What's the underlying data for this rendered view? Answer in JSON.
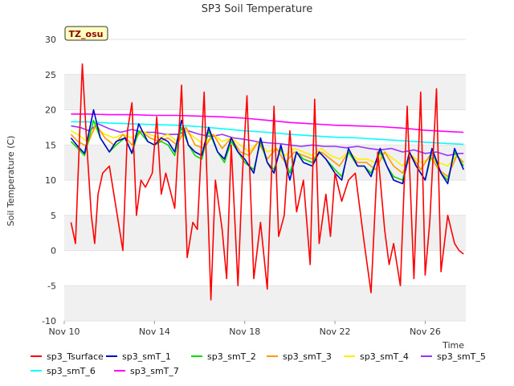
{
  "chart_data": {
    "type": "line",
    "title": "SP3 Soil Temperature",
    "xlabel": "Time",
    "ylabel": "Soil Temperature (C)",
    "site_label": "TZ_osu",
    "x_unit": "day of November",
    "xlim": [
      10,
      27.8
    ],
    "ylim": [
      -10,
      30
    ],
    "x_ticks": [
      {
        "value": 10,
        "label": "Nov 10"
      },
      {
        "value": 14,
        "label": "Nov 14"
      },
      {
        "value": 18,
        "label": "Nov 18"
      },
      {
        "value": 22,
        "label": "Nov 22"
      },
      {
        "value": 26,
        "label": "Nov 26"
      }
    ],
    "y_ticks": [
      -10,
      -5,
      0,
      5,
      10,
      15,
      20,
      25,
      30
    ],
    "grid": "horizontal bands",
    "legend_position": "bottom",
    "series": [
      {
        "name": "sp3_Tsurface",
        "color": "#ff0000",
        "x": [
          10.3,
          10.5,
          10.8,
          11.0,
          11.2,
          11.35,
          11.5,
          11.7,
          12.0,
          12.3,
          12.6,
          12.8,
          13.0,
          13.2,
          13.4,
          13.6,
          13.9,
          14.1,
          14.3,
          14.5,
          14.9,
          15.2,
          15.45,
          15.7,
          15.9,
          16.2,
          16.5,
          16.7,
          17.0,
          17.2,
          17.4,
          17.7,
          17.9,
          18.1,
          18.4,
          18.7,
          19.0,
          19.3,
          19.5,
          19.75,
          20.0,
          20.3,
          20.6,
          20.9,
          21.1,
          21.3,
          21.6,
          21.8,
          22.0,
          22.3,
          22.6,
          22.9,
          23.3,
          23.6,
          23.9,
          24.2,
          24.4,
          24.6,
          24.9,
          25.2,
          25.5,
          25.8,
          26.0,
          26.2,
          26.5,
          26.7,
          27.0,
          27.3,
          27.5,
          27.7
        ],
        "values": [
          4,
          1,
          26.5,
          15,
          5,
          1,
          8,
          11,
          12,
          6,
          0,
          17,
          21,
          5,
          10,
          9,
          11,
          19,
          8,
          11,
          6,
          23.5,
          -1,
          4,
          3,
          22.5,
          -7,
          10,
          3,
          -4,
          15,
          -5,
          11,
          22,
          -4,
          4,
          -5.5,
          20.5,
          2,
          5,
          17,
          5.5,
          10,
          -2,
          21.5,
          1,
          8,
          2,
          11,
          7,
          10,
          11,
          1,
          -6,
          14,
          3,
          -2,
          1,
          -5,
          20.5,
          -4,
          22.5,
          -3.5,
          4,
          23,
          -3,
          5,
          1,
          0,
          -0.5
        ]
      },
      {
        "name": "sp3_smT_1",
        "color": "#0000cc",
        "x": [
          10.3,
          10.6,
          10.9,
          11.3,
          11.6,
          12.0,
          12.3,
          12.7,
          13.0,
          13.3,
          13.7,
          14.0,
          14.3,
          14.6,
          14.9,
          15.2,
          15.5,
          15.8,
          16.1,
          16.4,
          16.8,
          17.1,
          17.4,
          17.7,
          18.0,
          18.4,
          18.7,
          19.0,
          19.3,
          19.6,
          20.0,
          20.3,
          20.6,
          21.0,
          21.3,
          21.6,
          22.0,
          22.3,
          22.6,
          23.0,
          23.3,
          23.6,
          24.0,
          24.3,
          24.6,
          25.0,
          25.3,
          25.6,
          26.0,
          26.3,
          26.7,
          27.0,
          27.3,
          27.5,
          27.7
        ],
        "values": [
          16,
          14.8,
          13.8,
          20,
          16,
          14,
          15.5,
          16,
          13.8,
          18,
          15.5,
          15,
          16,
          15.5,
          14,
          18.5,
          15,
          14,
          13.5,
          17.5,
          14,
          13,
          16,
          14,
          13,
          11,
          16,
          12.5,
          11,
          15,
          10,
          14,
          12.5,
          12,
          14,
          13,
          11,
          10,
          14.5,
          12,
          12,
          10.5,
          14.5,
          12,
          10,
          9.5,
          14,
          12,
          10,
          14.5,
          11,
          9.5,
          14.5,
          13,
          11.5
        ]
      },
      {
        "name": "sp3_smT_2",
        "color": "#00dd00",
        "x": [
          10.3,
          10.6,
          10.9,
          11.3,
          11.6,
          12.0,
          12.3,
          12.7,
          13.0,
          13.3,
          13.7,
          14.0,
          14.3,
          14.6,
          14.9,
          15.2,
          15.5,
          15.8,
          16.1,
          16.4,
          16.8,
          17.1,
          17.4,
          17.7,
          18.0,
          18.4,
          18.7,
          19.0,
          19.3,
          19.6,
          20.0,
          20.3,
          20.6,
          21.0,
          21.3,
          21.6,
          22.0,
          22.3,
          22.6,
          23.0,
          23.3,
          23.6,
          24.0,
          24.3,
          24.6,
          25.0,
          25.3,
          25.6,
          26.0,
          26.3,
          26.7,
          27.0,
          27.3,
          27.5,
          27.7
        ],
        "values": [
          15.5,
          14.5,
          13.5,
          18.5,
          16,
          14,
          15,
          16,
          13.8,
          17,
          15.5,
          15,
          15.5,
          15,
          13.5,
          17.5,
          15,
          13.5,
          13,
          17,
          14,
          12.5,
          15.5,
          14,
          12.5,
          11.5,
          15.5,
          12.5,
          11.5,
          14.5,
          11,
          14,
          13,
          12.5,
          14,
          13,
          11.5,
          10.5,
          14,
          12,
          12,
          11,
          14,
          12,
          10.5,
          10,
          14,
          12,
          10,
          14,
          11,
          10,
          14,
          13,
          12
        ]
      },
      {
        "name": "sp3_smT_3",
        "color": "#ff9900",
        "x": [
          10.3,
          10.6,
          11.0,
          11.4,
          11.8,
          12.2,
          12.6,
          13.0,
          13.4,
          13.8,
          14.2,
          14.6,
          15.0,
          15.4,
          15.8,
          16.2,
          16.6,
          17.0,
          17.4,
          17.8,
          18.2,
          18.6,
          19.0,
          19.4,
          19.8,
          20.2,
          20.6,
          21.0,
          21.4,
          21.8,
          22.2,
          22.6,
          23.0,
          23.4,
          23.8,
          24.2,
          24.6,
          25.0,
          25.4,
          25.8,
          26.2,
          26.6,
          27.0,
          27.4,
          27.7
        ],
        "values": [
          16.5,
          15.5,
          14.8,
          18,
          16,
          15,
          16.5,
          15,
          17,
          16,
          15.5,
          16,
          15,
          17.5,
          15,
          14.5,
          16.5,
          14.5,
          16,
          14,
          13.5,
          15.5,
          13,
          14.5,
          12.5,
          14,
          13.5,
          13,
          14,
          13,
          12,
          14,
          12.5,
          12.5,
          11.5,
          14,
          12,
          11,
          13.5,
          11.5,
          13.5,
          11.5,
          10.5,
          13.5,
          12.5
        ]
      },
      {
        "name": "sp3_smT_4",
        "color": "#ffee00",
        "x": [
          10.3,
          10.6,
          11.0,
          11.4,
          11.8,
          12.2,
          12.6,
          13.0,
          13.4,
          13.8,
          14.2,
          14.6,
          15.0,
          15.4,
          15.8,
          16.2,
          16.6,
          17.0,
          17.4,
          17.8,
          18.2,
          18.6,
          19.0,
          19.4,
          19.8,
          20.2,
          20.6,
          21.0,
          21.4,
          21.8,
          22.2,
          22.6,
          23.0,
          23.4,
          23.8,
          24.2,
          24.6,
          25.0,
          25.4,
          25.8,
          26.2,
          26.6,
          27.0,
          27.4,
          27.7
        ],
        "values": [
          17,
          16.5,
          15.5,
          17.5,
          16.5,
          16,
          16.5,
          16,
          17,
          16.5,
          16,
          16.5,
          15.5,
          17,
          16,
          15,
          16.5,
          15.5,
          16,
          15,
          14,
          15.5,
          14,
          14.5,
          13.5,
          14.5,
          14,
          13.5,
          14.5,
          13.5,
          13,
          14,
          13,
          13,
          12.5,
          14,
          13,
          12,
          13.5,
          12.5,
          13,
          12.5,
          12,
          13.5,
          12.5
        ]
      },
      {
        "name": "sp3_smT_5",
        "color": "#9933ff",
        "x": [
          10.3,
          10.7,
          11.1,
          11.5,
          12.0,
          12.5,
          13.0,
          13.5,
          14.0,
          14.5,
          15.0,
          15.5,
          16.0,
          16.5,
          17.0,
          17.5,
          18.0,
          18.5,
          19.0,
          19.5,
          20.0,
          20.5,
          21.0,
          21.5,
          22.0,
          22.5,
          23.0,
          23.5,
          24.0,
          24.5,
          25.0,
          25.5,
          26.0,
          26.5,
          27.0,
          27.5,
          27.7
        ],
        "values": [
          17.7,
          17.5,
          17,
          18,
          17.3,
          16.8,
          17.2,
          16.8,
          16.8,
          16.5,
          16.5,
          17,
          16.5,
          16.2,
          16.5,
          16,
          15.8,
          15.5,
          15.3,
          15.2,
          15,
          14.8,
          15,
          14.8,
          14.8,
          14.6,
          14.8,
          14.5,
          14.3,
          14.5,
          14,
          14.3,
          13.8,
          14,
          13.5,
          13.8,
          13.8
        ]
      },
      {
        "name": "sp3_smT_6",
        "color": "#00ffff",
        "x": [
          10.3,
          11.0,
          12.0,
          13.0,
          14.0,
          15.0,
          16.0,
          17.0,
          18.0,
          19.0,
          20.0,
          21.0,
          22.0,
          23.0,
          24.0,
          25.0,
          26.0,
          27.0,
          27.7
        ],
        "values": [
          18.3,
          18.3,
          18.1,
          18,
          17.9,
          17.8,
          17.6,
          17.3,
          17,
          16.8,
          16.5,
          16.3,
          16.1,
          16,
          15.8,
          15.6,
          15.4,
          15.2,
          15.1
        ]
      },
      {
        "name": "sp3_smT_7",
        "color": "#ff00ff",
        "x": [
          10.3,
          11.0,
          12.0,
          13.0,
          14.0,
          15.0,
          16.0,
          17.0,
          18.0,
          19.0,
          20.0,
          21.0,
          22.0,
          23.0,
          24.0,
          25.0,
          26.0,
          27.0,
          27.7
        ],
        "values": [
          19.4,
          19.4,
          19.3,
          19.3,
          19.2,
          19.2,
          19.1,
          19,
          18.8,
          18.5,
          18.2,
          18,
          17.8,
          17.7,
          17.6,
          17.4,
          17.1,
          16.9,
          16.8
        ]
      }
    ]
  }
}
